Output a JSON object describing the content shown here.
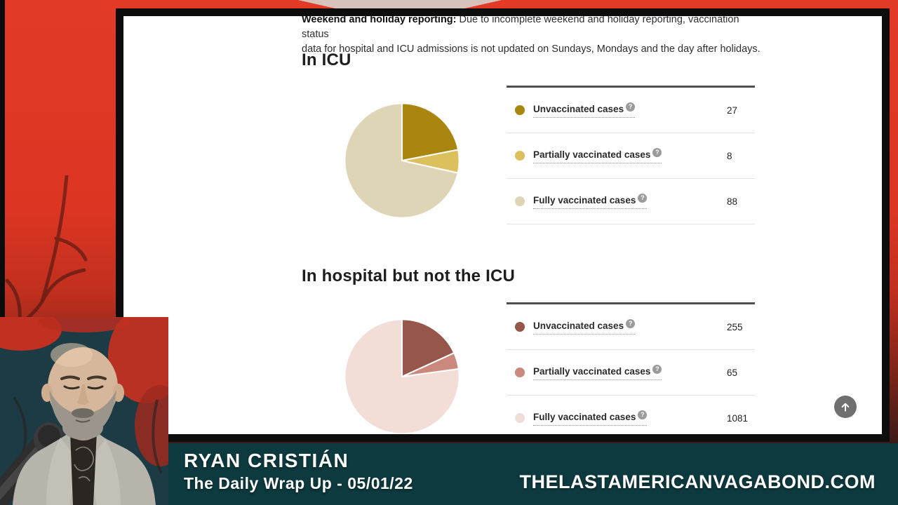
{
  "page": {
    "notice_bold": "Weekend and holiday reporting:",
    "notice_line1_rest": " Due to incomplete weekend and holiday reporting, vaccination status",
    "notice_line2": "data for hospital and ICU admissions is not updated on Sundays, Mondays and the day after holidays."
  },
  "chart_data": [
    {
      "type": "pie",
      "title": "In ICU",
      "categories": [
        "Unvaccinated cases",
        "Partially vaccinated cases",
        "Fully vaccinated cases"
      ],
      "values": [
        27,
        8,
        88
      ],
      "colors": [
        "#a8860f",
        "#ddc05e",
        "#ded5b6"
      ],
      "legend_position": "right",
      "start_angle_deg": 0,
      "direction": "clockwise"
    },
    {
      "type": "pie",
      "title": "In hospital but not the ICU",
      "categories": [
        "Unvaccinated cases",
        "Partially vaccinated cases",
        "Fully vaccinated cases"
      ],
      "values": [
        255,
        65,
        1081
      ],
      "colors": [
        "#97564a",
        "#cb897d",
        "#f2ded7"
      ],
      "legend_position": "right",
      "start_angle_deg": 0,
      "direction": "clockwise"
    }
  ],
  "icons": {
    "help_glyph": "?",
    "scroll_top": "arrow-up"
  },
  "banner": {
    "name": "RYAN CRISTIÁN",
    "subtitle": "The Daily Wrap Up - 05/01/22",
    "site": "THELASTAMERICANVAGABOND.COM"
  },
  "colors": {
    "background_red": "#dc3523",
    "banner_teal": "#0d3a3e",
    "window_border": "#0d0d0d",
    "legend_rule_dark": "#4e4e4e",
    "legend_rule_light": "#e5e3e0",
    "help_icon_bg": "#9b9b9b",
    "scroll_button_bg": "#6f6f6f"
  }
}
